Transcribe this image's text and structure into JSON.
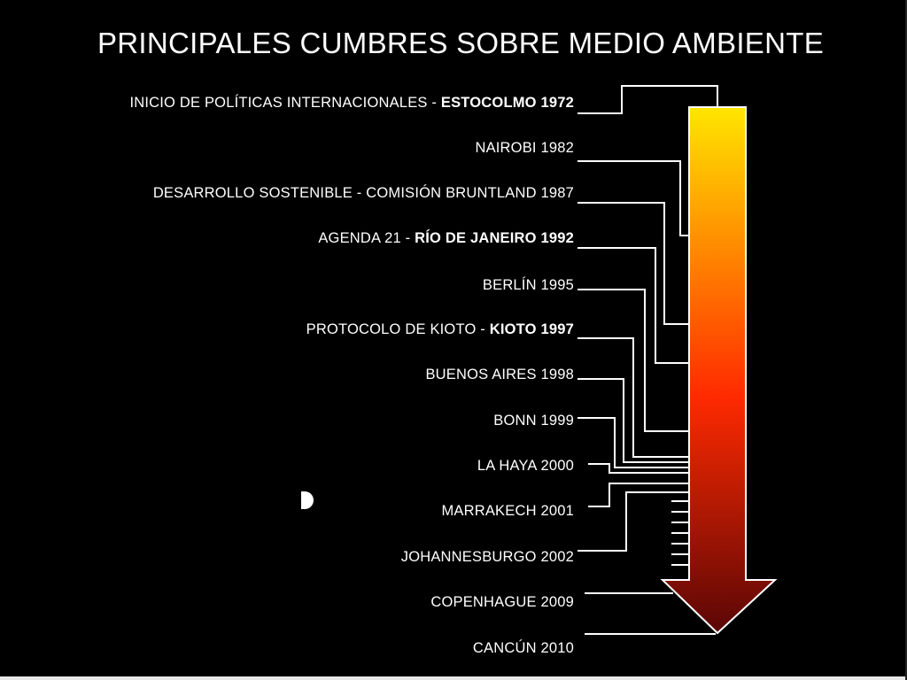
{
  "title": "PRINCIPALES CUMBRES SOBRE MEDIO AMBIENTE",
  "colors": {
    "arrow_top": "#ffe600",
    "arrow_mid": "#ff2a00",
    "arrow_bottom": "#5a0606",
    "line": "#ffffff",
    "background": "#000000"
  },
  "events": [
    {
      "prefix": "INICIO DE POLÍTICAS INTERNACIONALES - ",
      "bold": "ESTOCOLMO 1972"
    },
    {
      "prefix": "NAIROBI 1982",
      "bold": ""
    },
    {
      "prefix": "DESARROLLO SOSTENIBLE - COMISIÓN BRUNTLAND  1987",
      "bold": ""
    },
    {
      "prefix": "AGENDA 21 - ",
      "bold": "RÍO DE JANEIRO 1992"
    },
    {
      "prefix": "BERLÍN 1995",
      "bold": ""
    },
    {
      "prefix": "PROTOCOLO DE KIOTO - ",
      "bold": "KIOTO 1997"
    },
    {
      "prefix": "BUENOS AIRES 1998",
      "bold": ""
    },
    {
      "prefix": "BONN 1999",
      "bold": ""
    },
    {
      "prefix": "LA HAYA 2000",
      "bold": ""
    },
    {
      "prefix": "MARRAKECH 2001",
      "bold": ""
    },
    {
      "prefix": "JOHANNESBURGO 2002",
      "bold": ""
    },
    {
      "prefix": "COPENHAGUE 2009",
      "bold": ""
    },
    {
      "prefix": "CANCÚN 2010",
      "bold": ""
    }
  ]
}
